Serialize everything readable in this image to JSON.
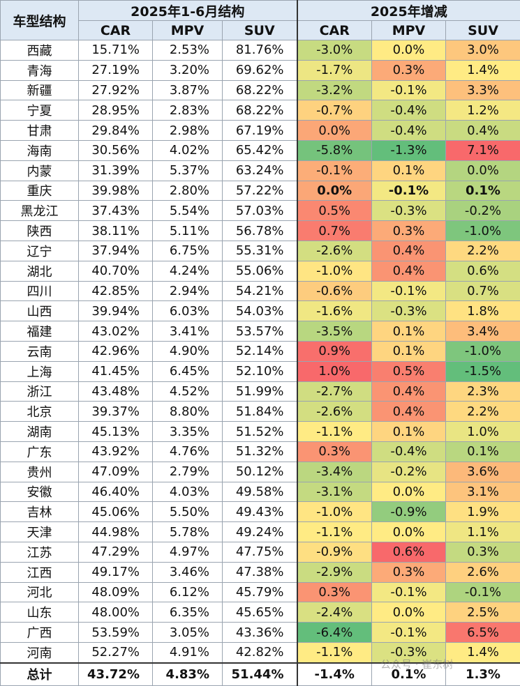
{
  "header": {
    "corner": "车型结构",
    "group_share": "2025年1-6月结构",
    "group_change": "2025年增减",
    "columns_share": [
      "CAR",
      "MPV",
      "SUV"
    ],
    "columns_change": [
      "CAR",
      "MPV",
      "SUV"
    ]
  },
  "rows": [
    {
      "region": "西藏",
      "share": [
        "15.71%",
        "2.53%",
        "81.76%"
      ],
      "change": [
        "-3.0%",
        "0.0%",
        "3.0%"
      ]
    },
    {
      "region": "青海",
      "share": [
        "27.19%",
        "3.20%",
        "69.62%"
      ],
      "change": [
        "-1.7%",
        "0.3%",
        "1.4%"
      ]
    },
    {
      "region": "新疆",
      "share": [
        "27.92%",
        "3.87%",
        "68.22%"
      ],
      "change": [
        "-3.2%",
        "-0.1%",
        "3.3%"
      ]
    },
    {
      "region": "宁夏",
      "share": [
        "28.95%",
        "2.83%",
        "68.22%"
      ],
      "change": [
        "-0.7%",
        "-0.4%",
        "1.2%"
      ]
    },
    {
      "region": "甘肃",
      "share": [
        "29.84%",
        "2.98%",
        "67.19%"
      ],
      "change": [
        "0.0%",
        "-0.4%",
        "0.4%"
      ]
    },
    {
      "region": "海南",
      "share": [
        "30.56%",
        "4.02%",
        "65.42%"
      ],
      "change": [
        "-5.8%",
        "-1.3%",
        "7.1%"
      ]
    },
    {
      "region": "内蒙",
      "share": [
        "31.39%",
        "5.37%",
        "63.24%"
      ],
      "change": [
        "-0.1%",
        "0.1%",
        "0.0%"
      ]
    },
    {
      "region": "重庆",
      "share": [
        "39.98%",
        "2.80%",
        "57.22%"
      ],
      "change": [
        "0.0%",
        "-0.1%",
        "0.1%"
      ],
      "bold": true
    },
    {
      "region": "黑龙江",
      "share": [
        "37.43%",
        "5.54%",
        "57.03%"
      ],
      "change": [
        "0.5%",
        "-0.3%",
        "-0.2%"
      ]
    },
    {
      "region": "陕西",
      "share": [
        "38.11%",
        "5.11%",
        "56.78%"
      ],
      "change": [
        "0.7%",
        "0.3%",
        "-1.0%"
      ]
    },
    {
      "region": "辽宁",
      "share": [
        "37.94%",
        "6.75%",
        "55.31%"
      ],
      "change": [
        "-2.6%",
        "0.4%",
        "2.2%"
      ]
    },
    {
      "region": "湖北",
      "share": [
        "40.70%",
        "4.24%",
        "55.06%"
      ],
      "change": [
        "-1.0%",
        "0.4%",
        "0.6%"
      ]
    },
    {
      "region": "四川",
      "share": [
        "42.85%",
        "2.94%",
        "54.21%"
      ],
      "change": [
        "-0.6%",
        "-0.1%",
        "0.7%"
      ]
    },
    {
      "region": "山西",
      "share": [
        "39.94%",
        "6.03%",
        "54.03%"
      ],
      "change": [
        "-1.6%",
        "-0.3%",
        "1.8%"
      ]
    },
    {
      "region": "福建",
      "share": [
        "43.02%",
        "3.41%",
        "53.57%"
      ],
      "change": [
        "-3.5%",
        "0.1%",
        "3.4%"
      ]
    },
    {
      "region": "云南",
      "share": [
        "42.96%",
        "4.90%",
        "52.14%"
      ],
      "change": [
        "0.9%",
        "0.1%",
        "-1.0%"
      ]
    },
    {
      "region": "上海",
      "share": [
        "41.45%",
        "6.45%",
        "52.10%"
      ],
      "change": [
        "1.0%",
        "0.5%",
        "-1.5%"
      ]
    },
    {
      "region": "浙江",
      "share": [
        "43.48%",
        "4.52%",
        "51.99%"
      ],
      "change": [
        "-2.7%",
        "0.4%",
        "2.3%"
      ]
    },
    {
      "region": "北京",
      "share": [
        "39.37%",
        "8.80%",
        "51.84%"
      ],
      "change": [
        "-2.6%",
        "0.4%",
        "2.2%"
      ]
    },
    {
      "region": "湖南",
      "share": [
        "45.13%",
        "3.35%",
        "51.52%"
      ],
      "change": [
        "-1.1%",
        "0.1%",
        "1.0%"
      ]
    },
    {
      "region": "广东",
      "share": [
        "43.92%",
        "4.76%",
        "51.32%"
      ],
      "change": [
        "0.3%",
        "-0.4%",
        "0.1%"
      ]
    },
    {
      "region": "贵州",
      "share": [
        "47.09%",
        "2.79%",
        "50.12%"
      ],
      "change": [
        "-3.4%",
        "-0.2%",
        "3.6%"
      ]
    },
    {
      "region": "安徽",
      "share": [
        "46.40%",
        "4.03%",
        "49.58%"
      ],
      "change": [
        "-3.1%",
        "0.0%",
        "3.1%"
      ]
    },
    {
      "region": "吉林",
      "share": [
        "45.06%",
        "5.50%",
        "49.43%"
      ],
      "change": [
        "-1.0%",
        "-0.9%",
        "1.9%"
      ]
    },
    {
      "region": "天津",
      "share": [
        "44.98%",
        "5.78%",
        "49.24%"
      ],
      "change": [
        "-1.1%",
        "0.0%",
        "1.1%"
      ]
    },
    {
      "region": "江苏",
      "share": [
        "47.29%",
        "4.97%",
        "47.75%"
      ],
      "change": [
        "-0.9%",
        "0.6%",
        "0.3%"
      ]
    },
    {
      "region": "江西",
      "share": [
        "49.17%",
        "3.46%",
        "47.38%"
      ],
      "change": [
        "-2.9%",
        "0.3%",
        "2.6%"
      ]
    },
    {
      "region": "河北",
      "share": [
        "48.09%",
        "6.12%",
        "45.79%"
      ],
      "change": [
        "0.3%",
        "-0.1%",
        "-0.1%"
      ]
    },
    {
      "region": "山东",
      "share": [
        "48.00%",
        "6.35%",
        "45.65%"
      ],
      "change": [
        "-2.4%",
        "0.0%",
        "2.5%"
      ]
    },
    {
      "region": "广西",
      "share": [
        "53.59%",
        "3.05%",
        "43.36%"
      ],
      "change": [
        "-6.4%",
        "-0.1%",
        "6.5%"
      ]
    },
    {
      "region": "河南",
      "share": [
        "52.27%",
        "4.91%",
        "42.82%"
      ],
      "change": [
        "-1.1%",
        "-0.3%",
        "1.4%"
      ]
    }
  ],
  "total": {
    "region": "总计",
    "share": [
      "43.72%",
      "4.83%",
      "51.44%"
    ],
    "change": [
      "-1.4%",
      "0.1%",
      "1.3%"
    ]
  },
  "watermark": "公众号 · 崔东树"
}
